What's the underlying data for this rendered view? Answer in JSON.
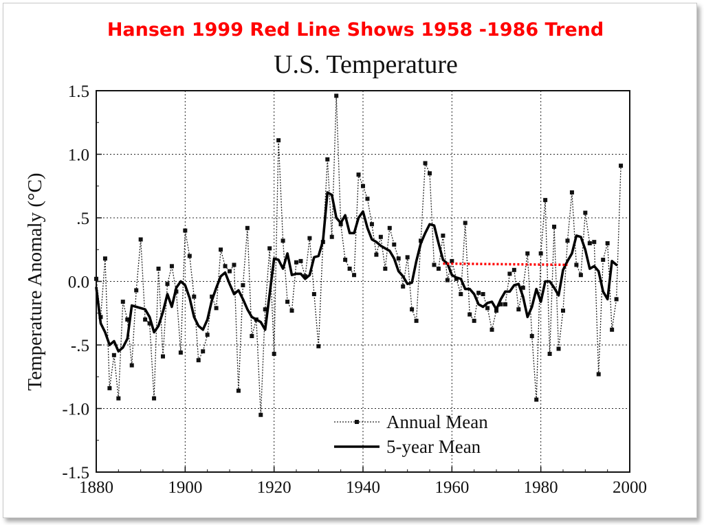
{
  "chart_data": {
    "type": "line",
    "headline": "Hansen 1999  Red Line Shows 1958 -1986 Trend",
    "title": "U.S. Temperature",
    "xlabel": "",
    "ylabel": "Temperature Anomaly (°C)",
    "xlim": [
      1880,
      2000
    ],
    "ylim": [
      -1.5,
      1.5
    ],
    "x_ticks": [
      1880,
      1900,
      1920,
      1940,
      1960,
      1980,
      2000
    ],
    "y_ticks": [
      {
        "value": 1.5,
        "label": "1.5"
      },
      {
        "value": 1.0,
        "label": "1.0"
      },
      {
        "value": 0.5,
        "label": ".5"
      },
      {
        "value": 0.0,
        "label": "0.0"
      },
      {
        "value": -0.5,
        "label": "-.5"
      },
      {
        "value": -1.0,
        "label": "-1.0"
      },
      {
        "value": -1.5,
        "label": "-1.5"
      }
    ],
    "grid": true,
    "legend_position": "bottom-center",
    "series": [
      {
        "name": "Annual Mean",
        "style": "dotted-markers",
        "color": "#222222",
        "x": [
          1880,
          1881,
          1882,
          1883,
          1884,
          1885,
          1886,
          1887,
          1888,
          1889,
          1890,
          1891,
          1892,
          1893,
          1894,
          1895,
          1896,
          1897,
          1898,
          1899,
          1900,
          1901,
          1902,
          1903,
          1904,
          1905,
          1906,
          1907,
          1908,
          1909,
          1910,
          1911,
          1912,
          1913,
          1914,
          1915,
          1916,
          1917,
          1918,
          1919,
          1920,
          1921,
          1922,
          1923,
          1924,
          1925,
          1926,
          1927,
          1928,
          1929,
          1930,
          1931,
          1932,
          1933,
          1934,
          1935,
          1936,
          1937,
          1938,
          1939,
          1940,
          1941,
          1942,
          1943,
          1944,
          1945,
          1946,
          1947,
          1948,
          1949,
          1950,
          1951,
          1952,
          1953,
          1954,
          1955,
          1956,
          1957,
          1958,
          1959,
          1960,
          1961,
          1962,
          1963,
          1964,
          1965,
          1966,
          1967,
          1968,
          1969,
          1970,
          1971,
          1972,
          1973,
          1974,
          1975,
          1976,
          1977,
          1978,
          1979,
          1980,
          1981,
          1982,
          1983,
          1984,
          1985,
          1986,
          1987,
          1988,
          1989,
          1990,
          1991,
          1992,
          1993,
          1994,
          1995,
          1996,
          1997,
          1998
        ],
        "values": [
          0.02,
          -0.28,
          0.18,
          -0.84,
          -0.58,
          -0.92,
          -0.16,
          -0.3,
          -0.66,
          -0.07,
          0.33,
          -0.3,
          -0.33,
          -0.92,
          0.1,
          -0.59,
          -0.02,
          0.12,
          -0.08,
          -0.56,
          0.4,
          0.2,
          -0.12,
          -0.62,
          -0.55,
          -0.42,
          -0.12,
          -0.21,
          0.25,
          0.12,
          0.08,
          0.13,
          -0.86,
          -0.03,
          0.42,
          -0.43,
          -0.3,
          -1.05,
          -0.22,
          0.26,
          -0.57,
          1.11,
          0.32,
          -0.16,
          -0.23,
          0.15,
          0.16,
          0.04,
          0.34,
          -0.1,
          -0.51,
          0.31,
          0.96,
          0.35,
          1.46,
          0.45,
          0.17,
          0.1,
          0.05,
          0.84,
          0.75,
          0.65,
          0.45,
          0.21,
          0.35,
          0.1,
          0.42,
          0.29,
          0.18,
          -0.04,
          0.19,
          -0.22,
          -0.31,
          0.32,
          0.93,
          0.85,
          0.13,
          0.1,
          0.36,
          0.01,
          0.16,
          0.02,
          -0.1,
          0.46,
          -0.26,
          -0.31,
          -0.09,
          -0.1,
          -0.21,
          -0.38,
          -0.23,
          -0.18,
          -0.18,
          0.06,
          0.09,
          -0.22,
          -0.05,
          0.22,
          -0.43,
          -0.93,
          0.22,
          0.64,
          -0.57,
          0.43,
          -0.53,
          -0.23,
          0.32,
          0.7,
          0.13,
          0.05,
          0.54,
          0.3,
          0.31,
          -0.73,
          0.17,
          0.3,
          -0.38,
          -0.14,
          0.91
        ]
      },
      {
        "name": "5-year Mean",
        "style": "solid-thick",
        "color": "#000000",
        "x": [
          1880,
          1881,
          1882,
          1883,
          1884,
          1885,
          1886,
          1887,
          1888,
          1889,
          1890,
          1891,
          1892,
          1893,
          1894,
          1895,
          1896,
          1897,
          1898,
          1899,
          1900,
          1901,
          1902,
          1903,
          1904,
          1905,
          1906,
          1907,
          1908,
          1909,
          1910,
          1911,
          1912,
          1913,
          1914,
          1915,
          1916,
          1917,
          1918,
          1919,
          1920,
          1921,
          1922,
          1923,
          1924,
          1925,
          1926,
          1927,
          1928,
          1929,
          1930,
          1931,
          1932,
          1933,
          1934,
          1935,
          1936,
          1937,
          1938,
          1939,
          1940,
          1941,
          1942,
          1943,
          1944,
          1945,
          1946,
          1947,
          1948,
          1949,
          1950,
          1951,
          1952,
          1953,
          1954,
          1955,
          1956,
          1957,
          1958,
          1959,
          1960,
          1961,
          1962,
          1963,
          1964,
          1965,
          1966,
          1967,
          1968,
          1969,
          1970,
          1971,
          1972,
          1973,
          1974,
          1975,
          1976,
          1977,
          1978,
          1979,
          1980,
          1981,
          1982,
          1983,
          1984,
          1985,
          1986,
          1987,
          1988,
          1989,
          1990,
          1991,
          1992,
          1993,
          1994,
          1995,
          1996,
          1997
        ],
        "values": [
          -0.05,
          -0.33,
          -0.4,
          -0.5,
          -0.47,
          -0.55,
          -0.52,
          -0.45,
          -0.19,
          -0.2,
          -0.21,
          -0.22,
          -0.28,
          -0.4,
          -0.35,
          -0.24,
          -0.1,
          -0.2,
          -0.05,
          0.0,
          -0.03,
          -0.13,
          -0.28,
          -0.35,
          -0.38,
          -0.3,
          -0.15,
          -0.05,
          0.04,
          0.07,
          -0.02,
          -0.1,
          -0.07,
          -0.14,
          -0.22,
          -0.28,
          -0.3,
          -0.32,
          -0.38,
          -0.1,
          0.18,
          0.17,
          0.1,
          0.22,
          0.05,
          0.06,
          0.06,
          0.02,
          0.05,
          0.19,
          0.2,
          0.32,
          0.7,
          0.68,
          0.5,
          0.46,
          0.52,
          0.38,
          0.38,
          0.5,
          0.55,
          0.42,
          0.33,
          0.31,
          0.28,
          0.26,
          0.24,
          0.18,
          0.08,
          0.04,
          -0.02,
          -0.01,
          0.16,
          0.3,
          0.38,
          0.45,
          0.44,
          0.3,
          0.17,
          0.14,
          0.05,
          0.03,
          0.02,
          -0.06,
          -0.06,
          -0.1,
          -0.18,
          -0.2,
          -0.17,
          -0.16,
          -0.22,
          -0.14,
          -0.08,
          -0.08,
          -0.03,
          -0.02,
          -0.12,
          -0.28,
          -0.2,
          -0.06,
          -0.16,
          0.0,
          0.0,
          -0.05,
          -0.11,
          0.09,
          0.16,
          0.22,
          0.36,
          0.35,
          0.25,
          0.1,
          0.12,
          0.08,
          -0.08,
          -0.14,
          0.16,
          0.13
        ]
      },
      {
        "name": "",
        "style": "dotted-red-trend",
        "color": "#ff0000",
        "x": [
          1958,
          1986
        ],
        "values": [
          0.14,
          0.13
        ]
      }
    ]
  }
}
